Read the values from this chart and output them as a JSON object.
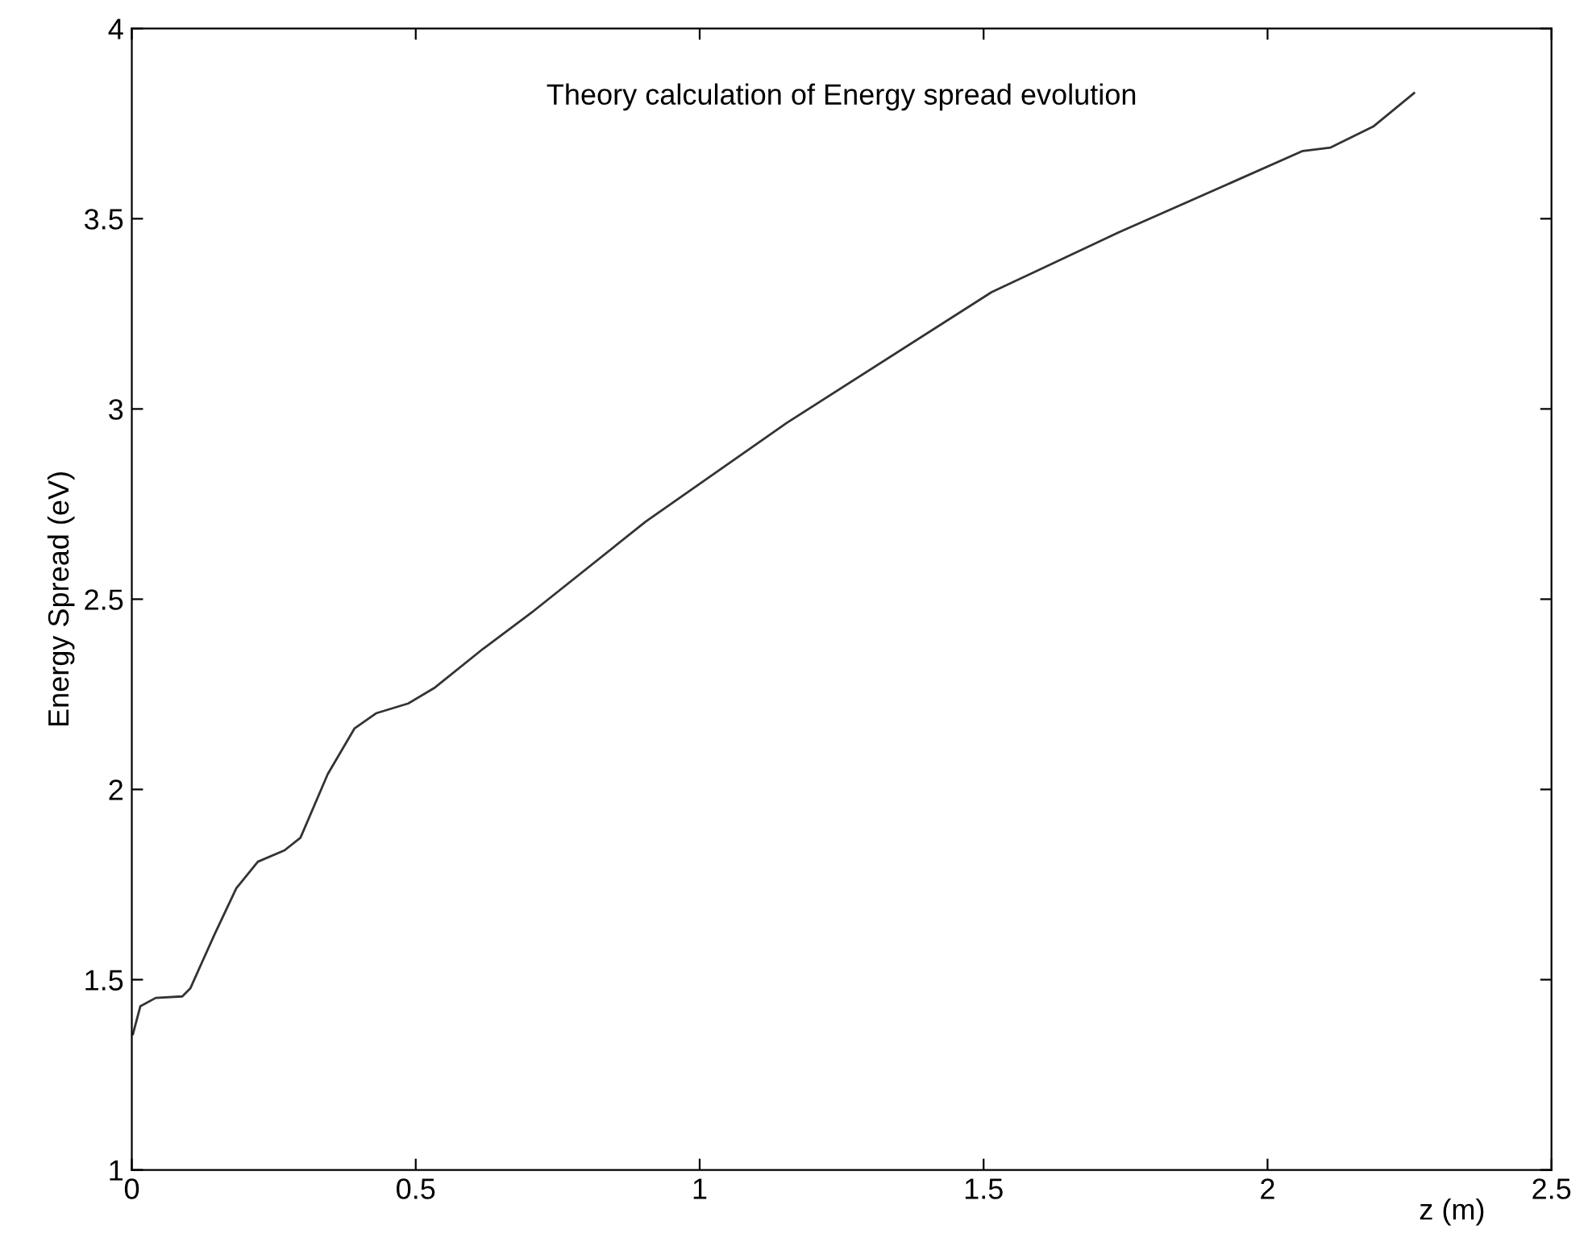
{
  "chart_data": {
    "type": "line",
    "xlabel": "z (m)",
    "ylabel": "Energy Spread (eV)",
    "annotations": [
      "Theory calculation of Energy spread evolution"
    ],
    "x": [
      0.002,
      0.015,
      0.042,
      0.089,
      0.103,
      0.146,
      0.184,
      0.222,
      0.269,
      0.297,
      0.345,
      0.392,
      0.43,
      0.487,
      0.534,
      0.619,
      0.705,
      0.905,
      1.154,
      1.514,
      1.738,
      2.062,
      2.111,
      2.186,
      2.258
    ],
    "series": [
      {
        "color": "#333333",
        "values": [
          1.357,
          1.43,
          1.452,
          1.456,
          1.477,
          1.62,
          1.74,
          1.81,
          1.84,
          1.873,
          2.04,
          2.16,
          2.2,
          2.226,
          2.268,
          2.37,
          2.466,
          2.704,
          2.964,
          3.307,
          3.464,
          3.678,
          3.687,
          3.742,
          3.83
        ]
      }
    ],
    "xlim": [
      0,
      2.5
    ],
    "ylim": [
      1,
      4
    ],
    "xticks": [
      0,
      0.5,
      1,
      1.5,
      2,
      2.5
    ],
    "yticks": [
      1,
      1.5,
      2,
      2.5,
      3,
      3.5,
      4
    ],
    "grid": false,
    "legend": false,
    "marker": "none",
    "line_style": "solid"
  }
}
